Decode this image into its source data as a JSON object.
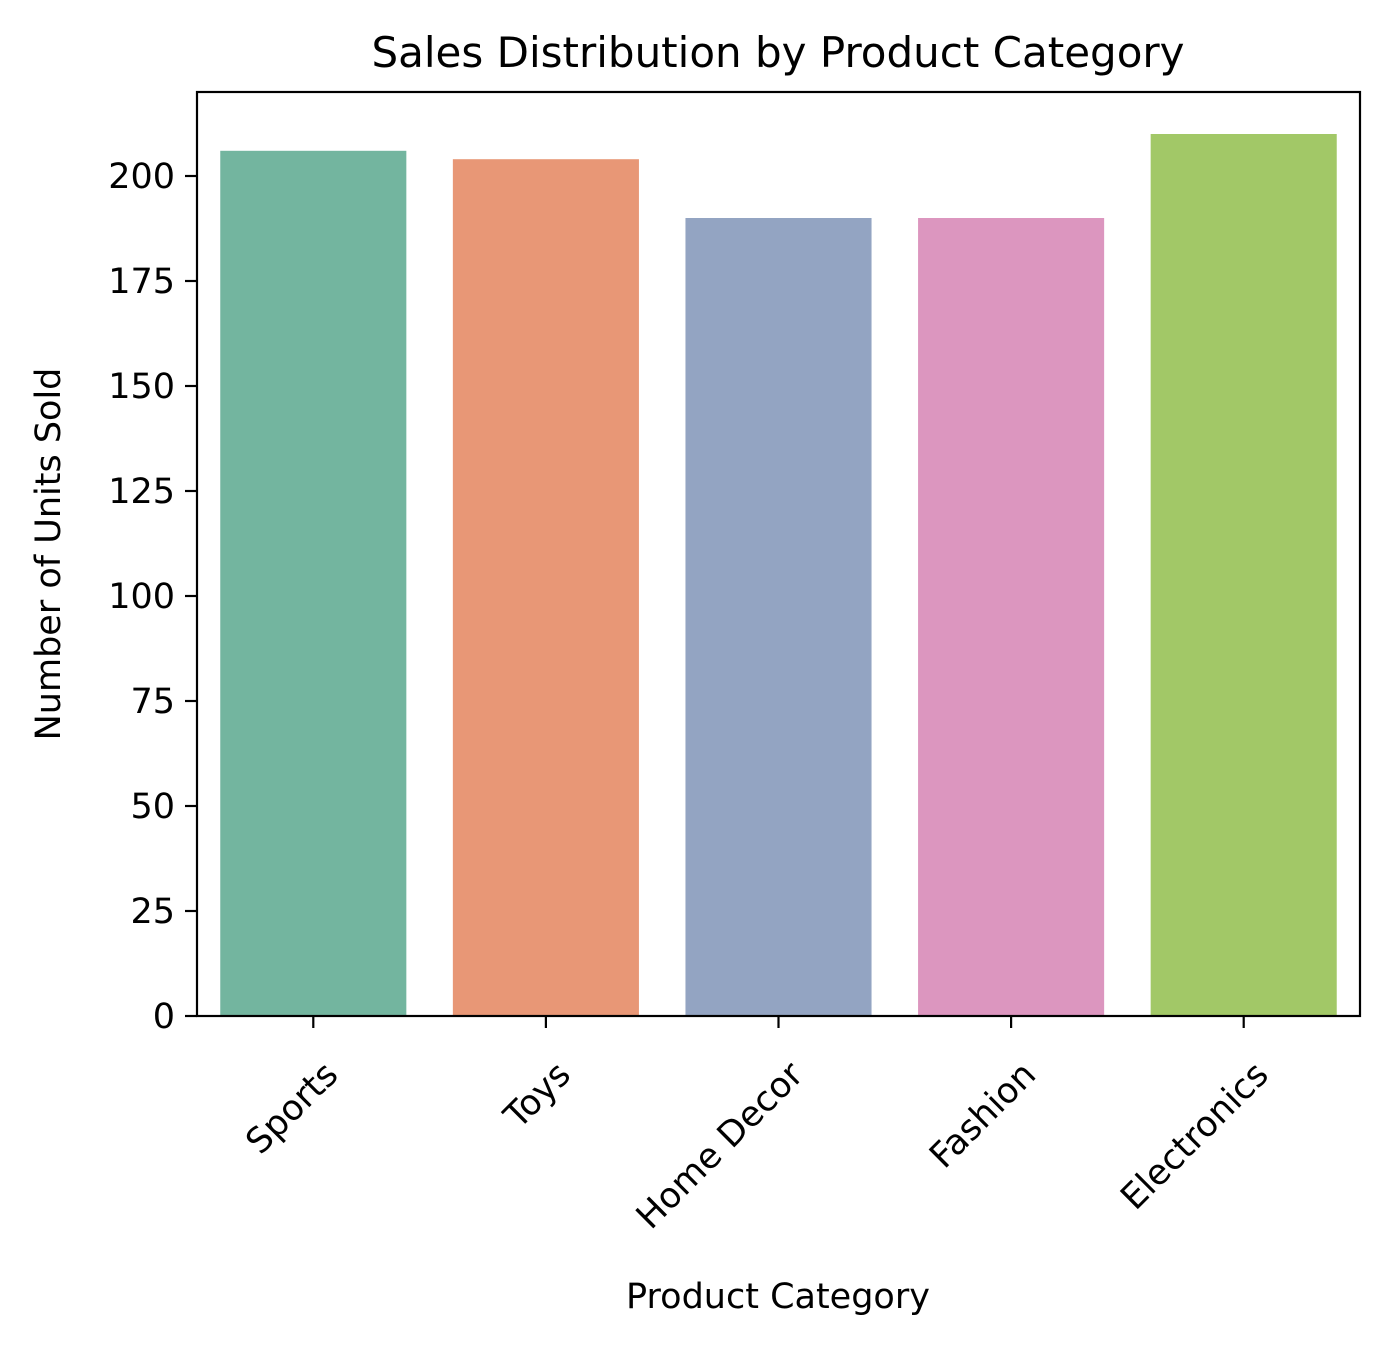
{
  "chart_data": {
    "type": "bar",
    "title": "Sales Distribution by Product Category",
    "xlabel": "Product Category",
    "ylabel": "Number of Units Sold",
    "categories": [
      "Sports",
      "Toys",
      "Home Decor",
      "Fashion",
      "Electronics"
    ],
    "values": [
      206,
      204,
      190,
      190,
      210
    ],
    "colors": [
      "#73b59f",
      "#e89776",
      "#93a4c2",
      "#dc96bf",
      "#a2c867"
    ],
    "ylim": [
      0,
      220
    ],
    "yticks": [
      0,
      25,
      50,
      75,
      100,
      125,
      150,
      175,
      200
    ],
    "x_tick_rotation_deg": 45,
    "grid": false,
    "legend": "none"
  }
}
